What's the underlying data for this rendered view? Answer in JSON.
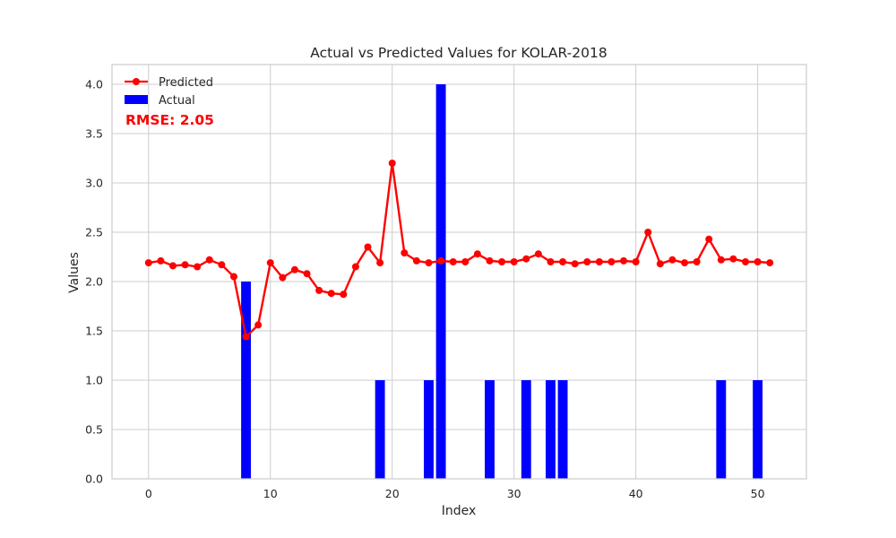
{
  "chart_data": {
    "type": "bar",
    "title": "Actual vs Predicted Values for KOLAR-2018",
    "xlabel": "Index",
    "ylabel": "Values",
    "xlim": [
      -3,
      54
    ],
    "ylim": [
      0,
      4.2
    ],
    "xticks": [
      0,
      10,
      20,
      30,
      40,
      50
    ],
    "yticks": [
      0.0,
      0.5,
      1.0,
      1.5,
      2.0,
      2.5,
      3.0,
      3.5,
      4.0
    ],
    "xtick_labels": [
      "0",
      "10",
      "20",
      "30",
      "40",
      "50"
    ],
    "ytick_labels": [
      "0.0",
      "0.5",
      "1.0",
      "1.5",
      "2.0",
      "2.5",
      "3.0",
      "3.5",
      "4.0"
    ],
    "grid": true,
    "legend_placement": "top-left",
    "annotation": {
      "text": "RMSE: 2.05",
      "color": "#ff0000"
    },
    "series": [
      {
        "name": "Predicted",
        "type": "line",
        "color": "#ff0000",
        "marker": "circle",
        "x": [
          0,
          1,
          2,
          3,
          4,
          5,
          6,
          7,
          8,
          9,
          10,
          11,
          12,
          13,
          14,
          15,
          16,
          17,
          18,
          19,
          20,
          21,
          22,
          23,
          24,
          25,
          26,
          27,
          28,
          29,
          30,
          31,
          32,
          33,
          34,
          35,
          36,
          37,
          38,
          39,
          40,
          41,
          42,
          43,
          44,
          45,
          46,
          47,
          48,
          49,
          50,
          51
        ],
        "values": [
          2.19,
          2.21,
          2.16,
          2.17,
          2.15,
          2.22,
          2.17,
          2.05,
          1.44,
          1.56,
          2.19,
          2.04,
          2.12,
          2.08,
          1.91,
          1.88,
          1.87,
          2.15,
          2.35,
          2.19,
          3.2,
          2.29,
          2.21,
          2.19,
          2.21,
          2.2,
          2.2,
          2.28,
          2.21,
          2.2,
          2.2,
          2.23,
          2.28,
          2.2,
          2.2,
          2.18,
          2.2,
          2.2,
          2.2,
          2.21,
          2.2,
          2.5,
          2.18,
          2.22,
          2.19,
          2.2,
          2.43,
          2.22,
          2.23,
          2.2,
          2.2,
          2.19
        ]
      },
      {
        "name": "Actual",
        "type": "bar",
        "color": "#0000ff",
        "x": [
          0,
          1,
          2,
          3,
          4,
          5,
          6,
          7,
          8,
          9,
          10,
          11,
          12,
          13,
          14,
          15,
          16,
          17,
          18,
          19,
          20,
          21,
          22,
          23,
          24,
          25,
          26,
          27,
          28,
          29,
          30,
          31,
          32,
          33,
          34,
          35,
          36,
          37,
          38,
          39,
          40,
          41,
          42,
          43,
          44,
          45,
          46,
          47,
          48,
          49,
          50,
          51
        ],
        "values": [
          0,
          0,
          0,
          0,
          0,
          0,
          0,
          0,
          2,
          0,
          0,
          0,
          0,
          0,
          0,
          0,
          0,
          0,
          0,
          1,
          0,
          0,
          0,
          1,
          4,
          0,
          0,
          0,
          1,
          0,
          0,
          1,
          0,
          1,
          1,
          0,
          0,
          0,
          0,
          0,
          0,
          0,
          0,
          0,
          0,
          0,
          0,
          1,
          0,
          0,
          1,
          0
        ]
      }
    ]
  }
}
